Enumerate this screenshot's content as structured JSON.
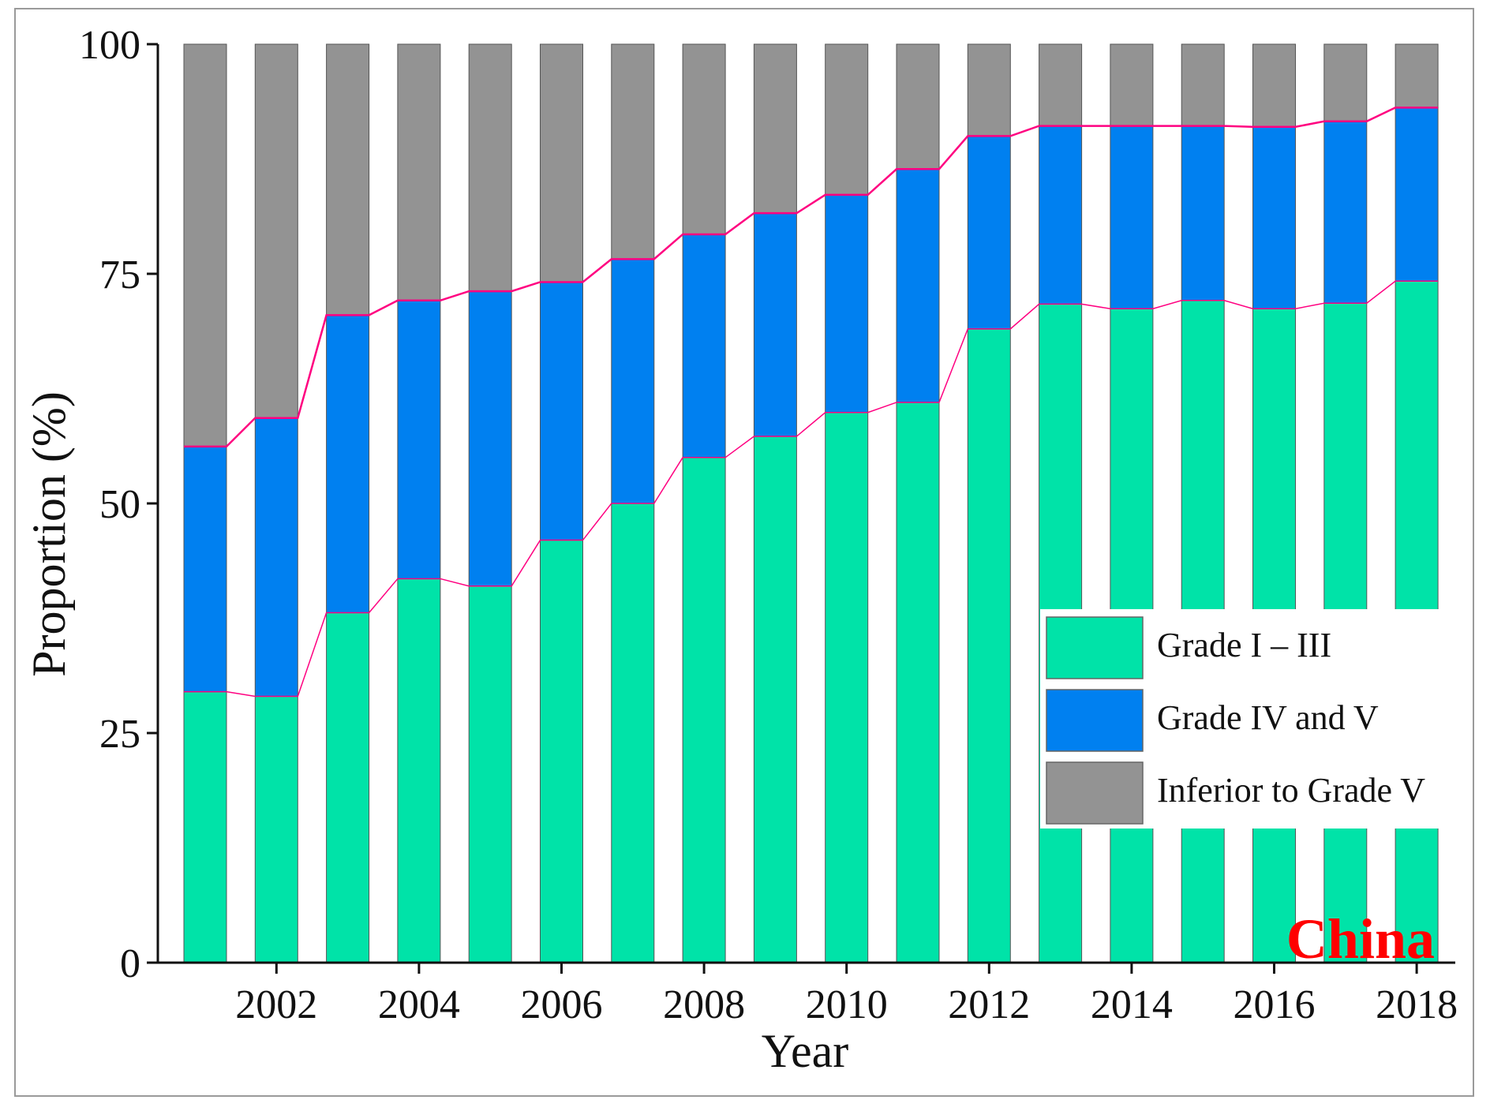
{
  "chart_data": {
    "type": "bar",
    "stacked": true,
    "title": "",
    "xlabel": "Year",
    "ylabel": "Proportion (%)",
    "ylim": [
      0,
      100
    ],
    "yticks": [
      "0",
      "25",
      "50",
      "75",
      "100"
    ],
    "xtick_labels": [
      "2002",
      "2004",
      "2006",
      "2008",
      "2010",
      "2012",
      "2014",
      "2016",
      "2018"
    ],
    "categories": [
      "2001",
      "2002",
      "2003",
      "2004",
      "2005",
      "2006",
      "2007",
      "2008",
      "2009",
      "2010",
      "2011",
      "2012",
      "2013",
      "2014",
      "2015",
      "2016",
      "2017",
      "2018"
    ],
    "series": [
      {
        "name": "Grade I – III",
        "color": "#00e3a8",
        "values": [
          29.5,
          29.0,
          38.1,
          41.8,
          41.0,
          46.0,
          50.0,
          55.0,
          57.3,
          59.9,
          61.0,
          69.0,
          71.7,
          71.2,
          72.1,
          71.2,
          71.8,
          74.2
        ]
      },
      {
        "name": "Grade IV and V",
        "color": "#0080f0",
        "values": [
          26.7,
          30.3,
          32.4,
          30.3,
          32.1,
          28.1,
          26.6,
          24.3,
          24.3,
          23.7,
          25.4,
          21.0,
          19.4,
          19.9,
          19.0,
          19.8,
          19.8,
          18.9
        ]
      },
      {
        "name": "Inferior to Grade V",
        "color": "#939393",
        "values": [
          43.8,
          40.7,
          29.5,
          27.9,
          26.9,
          25.9,
          23.4,
          20.7,
          18.4,
          16.4,
          13.6,
          10.0,
          8.9,
          8.9,
          8.9,
          9.0,
          8.4,
          6.9
        ]
      }
    ],
    "trend_line_color": "#ff0080",
    "legend_position": "lower-right",
    "grid": false,
    "annotation": {
      "text": "China",
      "color": "#ff0000"
    }
  }
}
